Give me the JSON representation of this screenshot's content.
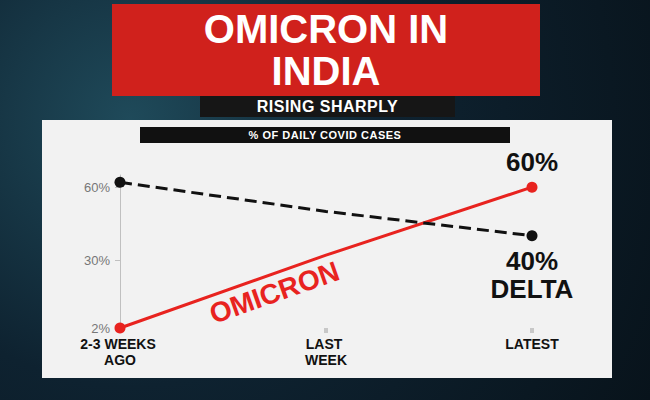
{
  "chart_data": {
    "type": "line",
    "title": "OMICRON IN INDIA",
    "subtitle": "RISING SHARPLY",
    "ylabel": "% OF DAILY COVID CASES",
    "categories": [
      "2-3 WEEKS AGO",
      "LAST WEEK",
      "LATEST"
    ],
    "series": [
      {
        "name": "OMICRON",
        "color": "#e8231f",
        "values": [
          2,
          32,
          60
        ],
        "value_labels": [
          null,
          null,
          "60%"
        ],
        "marker": "circle",
        "line_style": "solid"
      },
      {
        "name": "DELTA",
        "color": "#111111",
        "values": [
          62,
          50,
          40
        ],
        "value_labels": [
          null,
          null,
          "40%"
        ],
        "marker": "circle",
        "line_style": "dashed"
      }
    ],
    "ylim": [
      2,
      65
    ],
    "yticks": [
      {
        "value": 2,
        "label": "2%"
      },
      {
        "value": 30,
        "label": "30%"
      },
      {
        "value": 60,
        "label": "60%"
      }
    ],
    "grid": false,
    "data_labels": true
  }
}
